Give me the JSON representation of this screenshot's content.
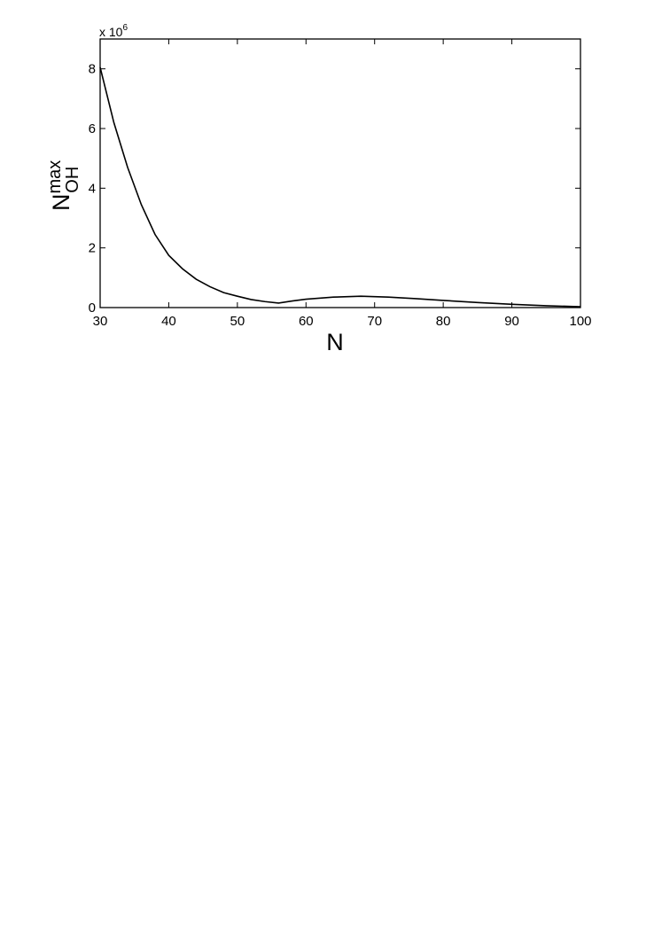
{
  "chart_data": {
    "type": "line",
    "xlabel": "N",
    "ylabel": "N",
    "ylabel_sup": "max",
    "ylabel_sub": "OH",
    "y_multiplier": "x 10",
    "y_multiplier_exp": "6",
    "x": [
      30,
      32,
      34,
      36,
      38,
      40,
      42,
      44,
      46,
      48,
      50,
      52,
      54,
      56,
      58,
      60,
      64,
      68,
      72,
      76,
      80,
      85,
      90,
      95,
      100
    ],
    "series": [
      {
        "color": "#000000",
        "values": [
          8.05,
          6.2,
          4.7,
          3.45,
          2.45,
          1.75,
          1.3,
          0.95,
          0.7,
          0.5,
          0.38,
          0.27,
          0.2,
          0.15,
          0.22,
          0.28,
          0.35,
          0.38,
          0.35,
          0.3,
          0.24,
          0.17,
          0.11,
          0.06,
          0.03
        ]
      }
    ],
    "xlim": [
      30,
      100
    ],
    "xticks": [
      30,
      40,
      50,
      60,
      70,
      80,
      90,
      100
    ],
    "ylim": [
      0,
      9
    ],
    "yticks": [
      0,
      2,
      4,
      6,
      8
    ],
    "grid": false
  }
}
